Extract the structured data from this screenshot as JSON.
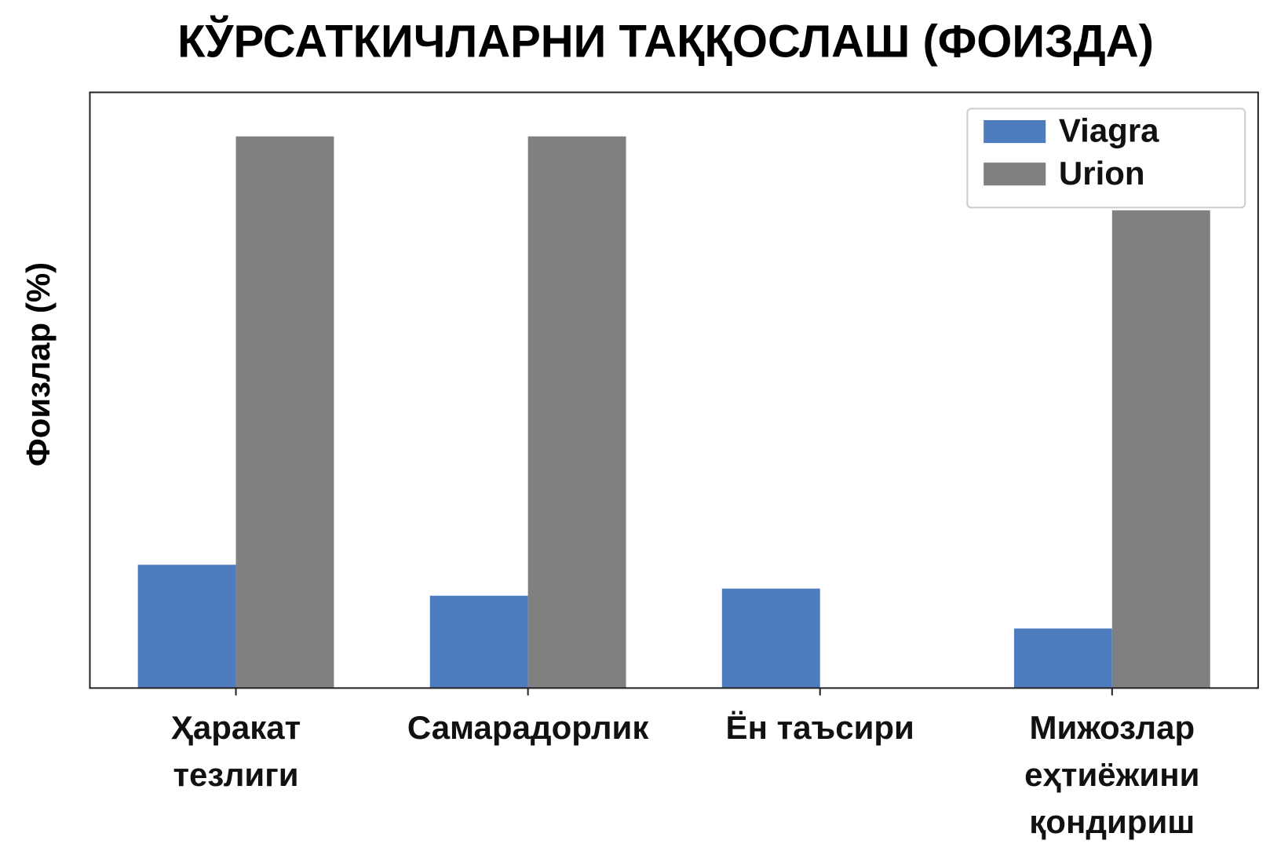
{
  "chart_data": {
    "type": "bar",
    "title": "КЎРСАТКИЧЛАРНИ ТАҚҚОСЛАШ (ФОИЗДА)",
    "y_label": "Фоизлар (%)",
    "categories": [
      "Ҳаракат тезлиги",
      "Самарадорлик",
      "Ён таъсири",
      "Мижозлар еҳтиёжини қондириш"
    ],
    "series": [
      {
        "name": "Viagra",
        "color": "#4e7dbf",
        "values": [
          20.7,
          15.5,
          16.7,
          10.0
        ]
      },
      {
        "name": "Urion",
        "color": "#808080",
        "values": [
          92.6,
          92.6,
          0,
          80.2
        ]
      }
    ],
    "ylim": [
      0,
      100
    ],
    "legend": "upper right"
  }
}
